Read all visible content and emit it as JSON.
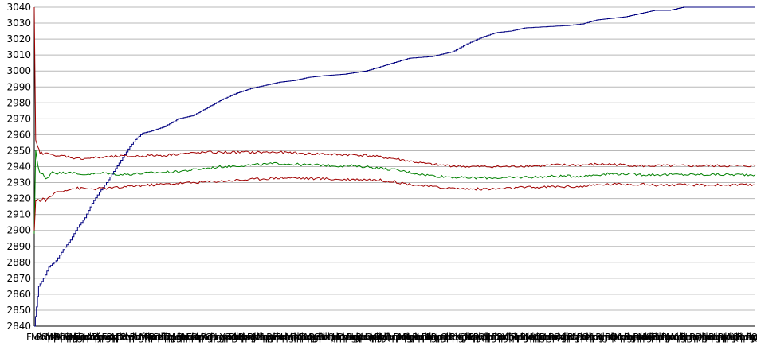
{
  "chart_data": {
    "type": "line",
    "title": "",
    "xlabel": "",
    "ylabel": "",
    "ylim": [
      2840,
      3040
    ],
    "yticks": [
      2840,
      2850,
      2860,
      2870,
      2880,
      2890,
      2900,
      2910,
      2920,
      2930,
      2940,
      2950,
      2960,
      2970,
      2980,
      2990,
      3000,
      3010,
      3020,
      3030,
      3040
    ],
    "grid": "horizontal",
    "legend": "none",
    "x_tick_labels": [
      "Flo",
      "Mixpho",
      "Prompp",
      "ChRuo",
      "Mpuqgi",
      "Nxdqy",
      "Pbmpp",
      "Dxplu",
      "Stlrmo",
      "Mgqhx",
      "Fwpdu",
      "Dxqmr",
      "Hmpgu",
      "Xrqwo",
      "Pjwqx",
      "Lmrpd",
      "Fxqmu",
      "Rpdqx",
      "Mlrpu",
      "Dxqhw",
      "Pqmrx",
      "Nhgpu",
      "Rxdmp",
      "Vfqpx",
      "Mhrpu",
      "Qxdlp",
      "Bmqpr",
      "Dfpgq",
      "Xlmpr",
      "Tqdpu",
      "Mgrxp",
      "Hqplu",
      "Rmdpx",
      "Npqhg",
      "Fxrpm",
      "Dplqu",
      "Mxqgp",
      "Rdpmx",
      "Qhgpu",
      "Pmxdr",
      "Lqpgu",
      "Xrmdp",
      "Gpqmu",
      "Dhxrp",
      "Mpqlu",
      "Rxgdp",
      "Uqmpx",
      "Pdlqg",
      "Mhrpx",
      "Xqdpu",
      "Lmpqg",
      "Rdxhp",
      "Gqmpu",
      "Pxdrm",
      "Hqlpu",
      "Mdpxg",
      "Qrhpu",
      "Xpmdl",
      "Dqgpr",
      "Mphxu",
      "Rqdlp",
      "Gxmpu",
      "Pdqhr",
      "Lmxpu",
      "Qrdpg",
      "Hpmxu",
      "Dxqlp",
      "Mrgpu",
      "Pqdxh",
      "Lxmpu",
      "Rdqpg",
      "Hmpxu",
      "Qdlpr",
      "Xgmpu",
      "Pdhqr",
      "Mlxpu",
      "Qrpdg",
      "Hxmpu",
      "Dqlpr",
      "Mgxpu",
      "Pqhdr",
      "Lmpxu",
      "Rqdgp",
      "Hxpmu",
      "Dlqpr",
      "Mxgpu",
      "Pqdhr",
      "Lmxpd",
      "Qrpgu",
      "Hdmxp",
      "Plqru",
      "Xgmpd",
      "Qhpru",
      "Mdlxp",
      "Rgqpu",
      "Pxhdm",
      "Qlpru",
      "Mgxdp",
      "Hqpru",
      "Dmlxp",
      "Pgqru",
      "Xhmdp",
      "Qlpgu",
      "Rdmxp",
      "Hgqpu",
      "Pxldm",
      "Mqgpu",
      "Xhrdp",
      "Qpmlu",
      "Dgxrp",
      "Hmqpu",
      "Pxdlr",
      "Qgmpu",
      "Xhdrp",
      "Lpqmu",
      "Rgxdp",
      "Mhqpu",
      "Pdlxr",
      "Qmgpu",
      "Xhdpr",
      "Lqmpu",
      "Rgdxp",
      "Hmqpu",
      "Pldxr",
      "Qmgpu",
      "Xdhpr",
      "Lmqpu",
      "Rgdpx",
      "Hqmpu",
      "Pxldr",
      "Mgqpu",
      "Xhdrp",
      "Qlmpu",
      "Rdgxp",
      "Hpmqu",
      "Pxdlr",
      "Mqgpu",
      "Xdhrp",
      "Lqmpu",
      "Rgxdp",
      "Hmpqu",
      "Pdlxr",
      "Qgmpu",
      "Xhdpr",
      "Lmqpu",
      "Rgdxp",
      "Hqpmu",
      "Pxldr",
      "Mgqpu",
      "Xdhrp",
      "Qmlpu",
      "Rdgxp",
      "Hmqpu",
      "Pxdlr",
      "Qgmpu"
    ],
    "series": [
      {
        "color": "#000080",
        "x": [
          0,
          0.003,
          0.006,
          0.01,
          0.015,
          0.02,
          0.03,
          0.04,
          0.05,
          0.06,
          0.07,
          0.08,
          0.09,
          0.1,
          0.11,
          0.12,
          0.13,
          0.14,
          0.15,
          0.16,
          0.18,
          0.2,
          0.22,
          0.24,
          0.26,
          0.28,
          0.3,
          0.32,
          0.34,
          0.36,
          0.38,
          0.4,
          0.43,
          0.46,
          0.49,
          0.52,
          0.55,
          0.58,
          0.6,
          0.62,
          0.64,
          0.66,
          0.68,
          0.7,
          0.72,
          0.74,
          0.76,
          0.78,
          0.8,
          0.82,
          0.84,
          0.86,
          0.88,
          0.9,
          0.92,
          0.94,
          0.96,
          0.98,
          1.0
        ],
        "y": [
          2840,
          2852,
          2865,
          2868,
          2872,
          2877,
          2881,
          2888,
          2894,
          2902,
          2908,
          2917,
          2924,
          2930,
          2937,
          2944,
          2951,
          2957,
          2961,
          2962,
          2965,
          2970,
          2972,
          2977,
          2982,
          2986,
          2989,
          2991,
          2993,
          2994,
          2996,
          2997,
          2998,
          3000,
          3004,
          3008,
          3009,
          3012,
          3017,
          3021,
          3024,
          3025,
          3027,
          3027.5,
          3028,
          3028.5,
          3029.5,
          3032,
          3033,
          3034,
          3036,
          3038,
          3038,
          3040,
          3040,
          3040,
          3040,
          3040,
          3040
        ]
      },
      {
        "color": "#008000",
        "x": [
          0,
          0.002,
          0.005,
          0.008,
          0.012,
          0.016,
          0.02,
          0.025,
          0.03,
          0.04,
          0.05,
          0.06,
          0.08,
          0.1,
          0.12,
          0.14,
          0.16,
          0.18,
          0.2,
          0.22,
          0.24,
          0.26,
          0.28,
          0.3,
          0.32,
          0.34,
          0.36,
          0.38,
          0.4,
          0.42,
          0.44,
          0.46,
          0.48,
          0.5,
          0.52,
          0.54,
          0.56,
          0.58,
          0.6,
          0.62,
          0.64,
          0.66,
          0.68,
          0.7,
          0.72,
          0.74,
          0.76,
          0.78,
          0.8,
          0.82,
          0.84,
          0.86,
          0.88,
          0.9,
          0.92,
          0.94,
          0.96,
          0.98,
          1.0
        ],
        "y": [
          2898,
          2950,
          2941,
          2936,
          2935,
          2932,
          2934,
          2937,
          2936,
          2936,
          2937,
          2935,
          2935.5,
          2936,
          2935,
          2935.5,
          2936,
          2936.5,
          2937,
          2938,
          2939,
          2940,
          2940.5,
          2941,
          2941.5,
          2942,
          2941.5,
          2941,
          2941,
          2940.5,
          2940.5,
          2940,
          2939,
          2938,
          2936.5,
          2935,
          2934,
          2933.5,
          2933,
          2933,
          2933,
          2933,
          2933.5,
          2933.5,
          2934,
          2934,
          2934,
          2935,
          2935.5,
          2935.5,
          2935,
          2935,
          2935,
          2935,
          2935,
          2935,
          2935,
          2935,
          2935
        ]
      },
      {
        "color": "#a00000",
        "x": [
          0,
          0.002,
          0.005,
          0.008,
          0.012,
          0.016,
          0.02,
          0.025,
          0.03,
          0.04,
          0.05,
          0.06,
          0.08,
          0.1,
          0.12,
          0.14,
          0.16,
          0.18,
          0.2,
          0.22,
          0.24,
          0.26,
          0.28,
          0.3,
          0.32,
          0.34,
          0.36,
          0.38,
          0.4,
          0.42,
          0.44,
          0.46,
          0.48,
          0.5,
          0.52,
          0.54,
          0.56,
          0.58,
          0.6,
          0.62,
          0.64,
          0.66,
          0.68,
          0.7,
          0.72,
          0.74,
          0.76,
          0.78,
          0.8,
          0.82,
          0.84,
          0.86,
          0.88,
          0.9,
          0.92,
          0.94,
          0.96,
          0.98,
          1.0
        ],
        "y": [
          3040,
          2956,
          2952,
          2949,
          2948,
          2948,
          2949,
          2948,
          2946,
          2947,
          2946,
          2945,
          2945.5,
          2946,
          2946.5,
          2946.5,
          2947,
          2947,
          2948,
          2948.5,
          2949,
          2949,
          2949,
          2949,
          2949,
          2949,
          2948.5,
          2948,
          2948,
          2947.5,
          2947.5,
          2947,
          2946,
          2945,
          2943.5,
          2942,
          2941,
          2940.5,
          2940,
          2940,
          2940,
          2940,
          2940.5,
          2940.5,
          2941,
          2941,
          2941,
          2941.5,
          2941.5,
          2941,
          2940.5,
          2940.5,
          2940.5,
          2940.5,
          2940.5,
          2940.5,
          2940.5,
          2940.5,
          2940.5
        ]
      },
      {
        "color": "#a00000",
        "x": [
          0,
          0.002,
          0.005,
          0.008,
          0.012,
          0.016,
          0.02,
          0.025,
          0.03,
          0.04,
          0.05,
          0.06,
          0.08,
          0.1,
          0.12,
          0.14,
          0.16,
          0.18,
          0.2,
          0.22,
          0.24,
          0.26,
          0.28,
          0.3,
          0.32,
          0.34,
          0.36,
          0.38,
          0.4,
          0.42,
          0.44,
          0.46,
          0.48,
          0.5,
          0.52,
          0.54,
          0.56,
          0.58,
          0.6,
          0.62,
          0.64,
          0.66,
          0.68,
          0.7,
          0.72,
          0.74,
          0.76,
          0.78,
          0.8,
          0.82,
          0.84,
          0.86,
          0.88,
          0.9,
          0.92,
          0.94,
          0.96,
          0.98,
          1.0
        ],
        "y": [
          2900,
          2918,
          2920,
          2918,
          2920,
          2919,
          2920,
          2922,
          2924,
          2925,
          2926,
          2926.5,
          2926,
          2926.5,
          2927,
          2928,
          2928.5,
          2929,
          2929.5,
          2930,
          2930.5,
          2931,
          2931.5,
          2932,
          2932.5,
          2933,
          2933,
          2932.5,
          2932.5,
          2932,
          2932,
          2932,
          2931.5,
          2930.5,
          2929,
          2928,
          2927,
          2926.5,
          2926,
          2926,
          2926,
          2926.5,
          2927,
          2927,
          2927.5,
          2927.5,
          2927.5,
          2928.5,
          2929,
          2929,
          2929,
          2928.5,
          2928.5,
          2928.5,
          2928.5,
          2928.5,
          2928.5,
          2928.5,
          2928.5
        ]
      }
    ]
  }
}
